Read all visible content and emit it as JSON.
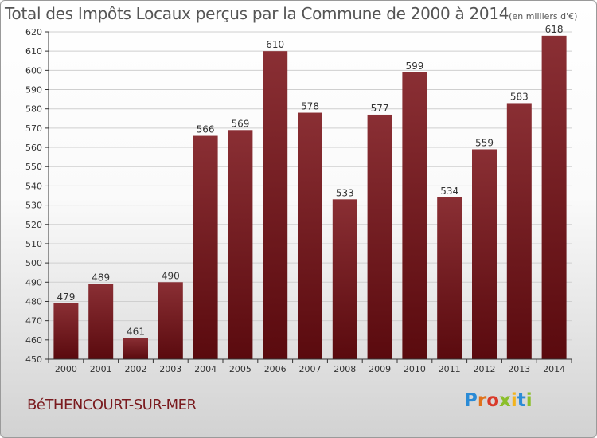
{
  "title": "Total des Impôts Locaux perçus par la Commune de 2000 à 2014",
  "title_unit": "(en milliers d'€)",
  "commune": "BéTHENCOURT-SUR-MER",
  "logo": {
    "text": "Proxiti",
    "letters": [
      {
        "char": "P",
        "color": "#2a8bd6"
      },
      {
        "char": "r",
        "color": "#e0731c"
      },
      {
        "char": "o",
        "color": "#d93a2a"
      },
      {
        "char": "x",
        "color": "#8bbf2a"
      },
      {
        "char": "i",
        "color": "#f2b31c"
      },
      {
        "char": "t",
        "color": "#2a8bd6"
      },
      {
        "char": "i",
        "color": "#8bbf2a"
      }
    ]
  },
  "colors": {
    "bar_top": "#8a2f34",
    "bar_bottom": "#5a0a0e",
    "grid": "#cfcfcf",
    "axis": "#333333",
    "text": "#333333"
  },
  "chart_data": {
    "type": "bar",
    "title": "Total des Impôts Locaux perçus par la Commune de 2000 à 2014",
    "xlabel": "",
    "ylabel": "en milliers d'€",
    "categories": [
      "2000",
      "2001",
      "2002",
      "2003",
      "2004",
      "2005",
      "2006",
      "2007",
      "2008",
      "2009",
      "2010",
      "2011",
      "2012",
      "2013",
      "2014"
    ],
    "values": [
      479,
      489,
      461,
      490,
      566,
      569,
      610,
      578,
      533,
      577,
      599,
      534,
      559,
      583,
      618
    ],
    "ylim": [
      450,
      620
    ],
    "yticks": [
      450,
      460,
      470,
      480,
      490,
      500,
      510,
      520,
      530,
      540,
      550,
      560,
      570,
      580,
      590,
      600,
      610,
      620
    ],
    "grid": true,
    "data_labels": true
  }
}
